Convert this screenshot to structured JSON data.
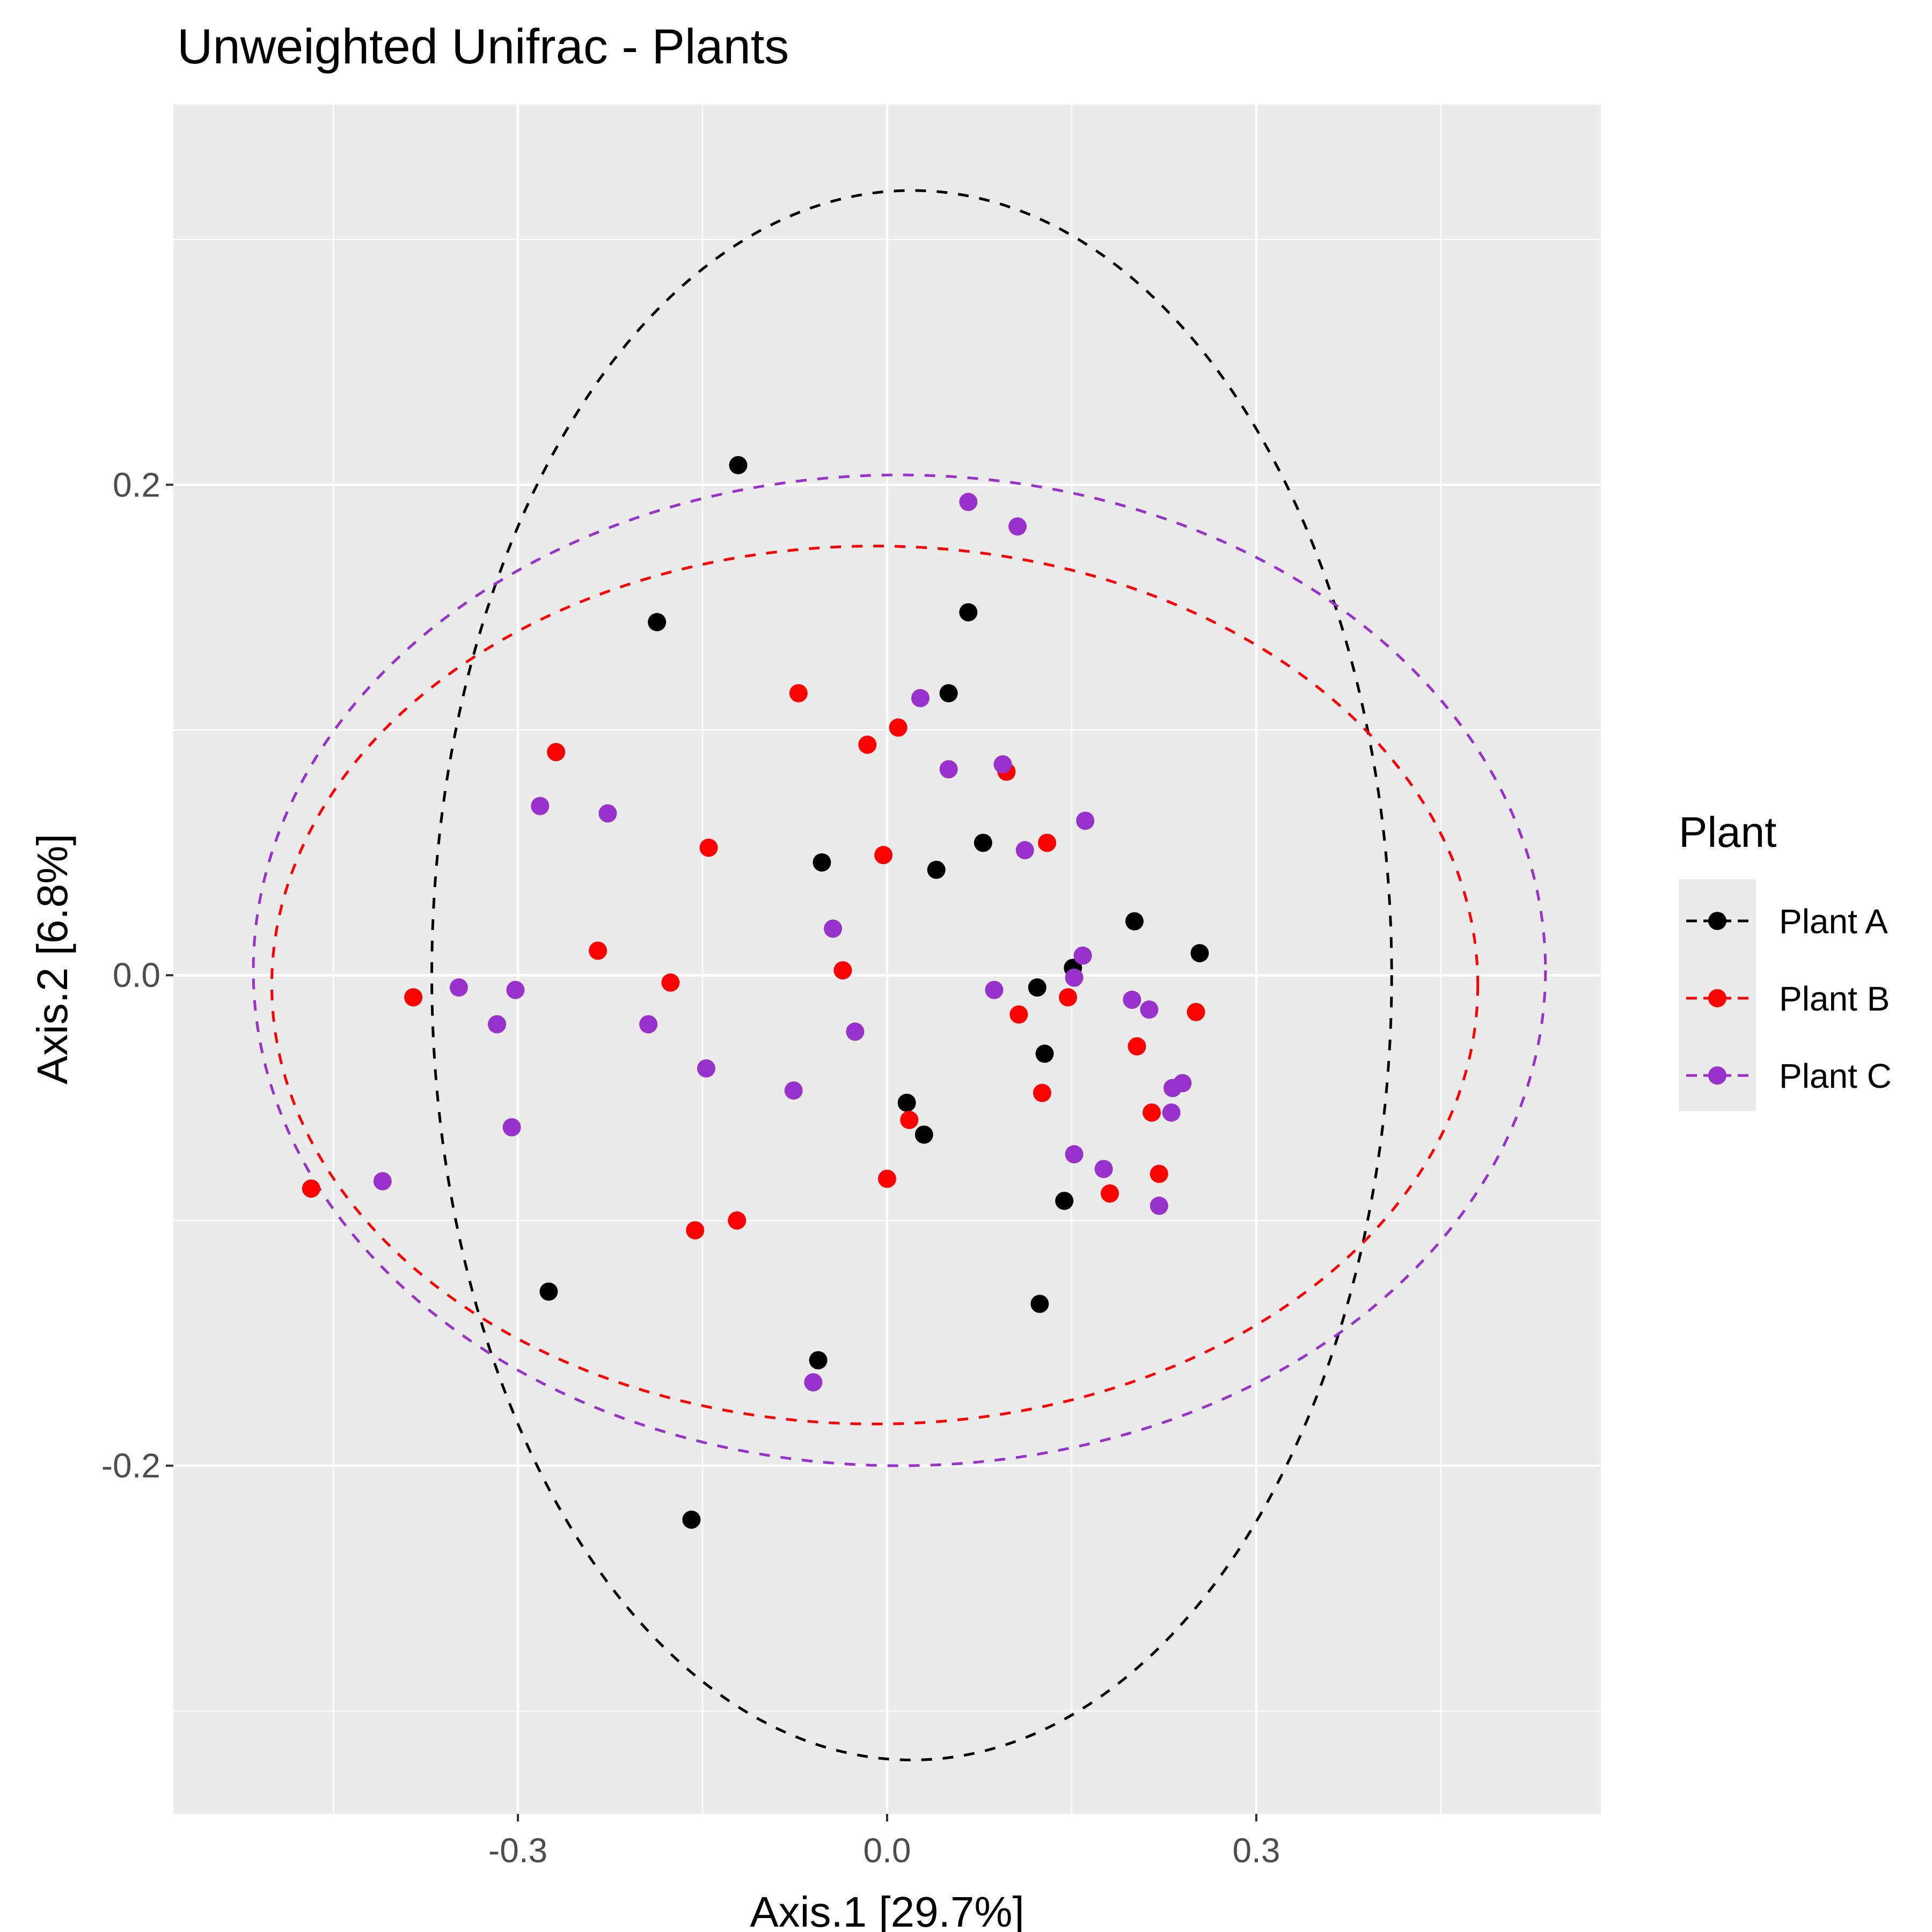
{
  "chart_data": {
    "type": "scatter",
    "title": "Unweighted Unifrac - Plants",
    "xlabel": "Axis.1   [29.7%]",
    "ylabel": "Axis.2   [6.8%]",
    "xlim": [
      -0.58,
      0.58
    ],
    "ylim": [
      -0.342,
      0.355
    ],
    "x_ticks": [
      -0.3,
      0.0,
      0.3
    ],
    "x_tick_labels": [
      "-0.3",
      "0.0",
      "0.3"
    ],
    "y_ticks": [
      -0.2,
      0.0,
      0.2
    ],
    "y_tick_labels": [
      "-0.2",
      "0.0",
      "0.2"
    ],
    "grid": true,
    "legend": {
      "title": "Plant",
      "position": "right"
    },
    "series": [
      {
        "name": "Plant A",
        "color": "#000000",
        "ellipse": {
          "cx": 0.02,
          "cy": 0.0,
          "rx": 0.39,
          "ry": 0.32
        },
        "points": [
          [
            -0.121,
            0.208
          ],
          [
            -0.187,
            0.144
          ],
          [
            0.066,
            0.148
          ],
          [
            0.05,
            0.115
          ],
          [
            -0.053,
            0.046
          ],
          [
            0.04,
            0.043
          ],
          [
            0.078,
            0.054
          ],
          [
            0.201,
            0.022
          ],
          [
            0.254,
            0.009
          ],
          [
            0.151,
            0.003
          ],
          [
            0.122,
            -0.005
          ],
          [
            0.128,
            -0.032
          ],
          [
            0.016,
            -0.052
          ],
          [
            0.03,
            -0.065
          ],
          [
            0.144,
            -0.092
          ],
          [
            -0.275,
            -0.129
          ],
          [
            0.124,
            -0.134
          ],
          [
            -0.056,
            -0.157
          ],
          [
            -0.159,
            -0.222
          ]
        ]
      },
      {
        "name": "Plant B",
        "color": "#ff0000",
        "ellipse": {
          "cx": -0.01,
          "cy": -0.004,
          "rx": 0.49,
          "ry": 0.179
        },
        "points": [
          [
            -0.072,
            0.115
          ],
          [
            0.009,
            0.101
          ],
          [
            -0.016,
            0.094
          ],
          [
            -0.269,
            0.091
          ],
          [
            0.097,
            0.083
          ],
          [
            -0.145,
            0.052
          ],
          [
            0.13,
            0.054
          ],
          [
            -0.003,
            0.049
          ],
          [
            -0.235,
            0.01
          ],
          [
            -0.036,
            0.002
          ],
          [
            -0.176,
            -0.003
          ],
          [
            -0.385,
            -0.009
          ],
          [
            0.147,
            -0.009
          ],
          [
            0.251,
            -0.015
          ],
          [
            0.107,
            -0.016
          ],
          [
            0.203,
            -0.029
          ],
          [
            0.126,
            -0.048
          ],
          [
            0.215,
            -0.056
          ],
          [
            0.018,
            -0.059
          ],
          [
            0.221,
            -0.081
          ],
          [
            0.0,
            -0.083
          ],
          [
            0.181,
            -0.089
          ],
          [
            -0.122,
            -0.1
          ],
          [
            -0.156,
            -0.104
          ],
          [
            -0.468,
            -0.087
          ]
        ]
      },
      {
        "name": "Plant C",
        "color": "#9932cc",
        "ellipse": {
          "cx": 0.01,
          "cy": 0.002,
          "rx": 0.525,
          "ry": 0.202
        },
        "points": [
          [
            0.066,
            0.193
          ],
          [
            0.106,
            0.183
          ],
          [
            0.027,
            0.113
          ],
          [
            0.05,
            0.084
          ],
          [
            0.094,
            0.086
          ],
          [
            -0.282,
            0.069
          ],
          [
            -0.227,
            0.066
          ],
          [
            0.161,
            0.063
          ],
          [
            0.112,
            0.051
          ],
          [
            -0.044,
            0.019
          ],
          [
            0.159,
            0.008
          ],
          [
            0.152,
            -0.001
          ],
          [
            -0.348,
            -0.005
          ],
          [
            -0.302,
            -0.006
          ],
          [
            0.087,
            -0.006
          ],
          [
            0.199,
            -0.01
          ],
          [
            0.213,
            -0.014
          ],
          [
            -0.317,
            -0.02
          ],
          [
            -0.194,
            -0.02
          ],
          [
            -0.026,
            -0.023
          ],
          [
            -0.147,
            -0.038
          ],
          [
            0.24,
            -0.044
          ],
          [
            0.232,
            -0.046
          ],
          [
            -0.076,
            -0.047
          ],
          [
            0.231,
            -0.056
          ],
          [
            -0.305,
            -0.062
          ],
          [
            0.152,
            -0.073
          ],
          [
            0.176,
            -0.079
          ],
          [
            -0.41,
            -0.084
          ],
          [
            0.221,
            -0.094
          ],
          [
            -0.06,
            -0.166
          ]
        ]
      }
    ]
  }
}
